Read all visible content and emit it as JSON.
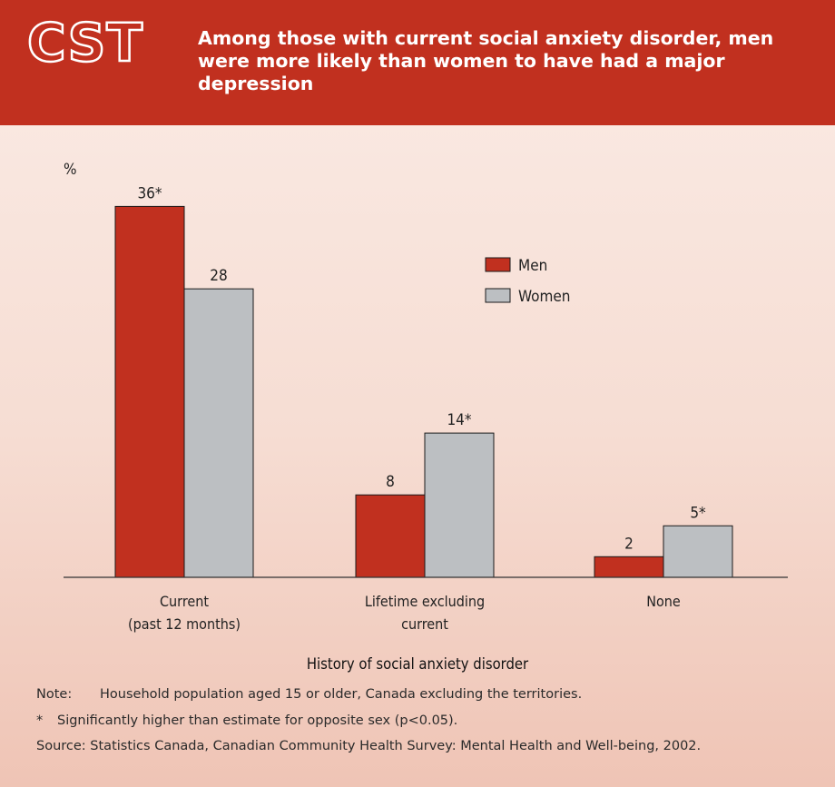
{
  "header": {
    "logo": "CST",
    "title": "Among those with current social anxiety disorder, men were more likely than women to have had a major depression"
  },
  "colors": {
    "header_bg": "#c1301f",
    "men": "#c1301f",
    "women": "#bcbfc2"
  },
  "chart_data": {
    "type": "bar",
    "ylabel": "%",
    "xlabel": "History of social anxiety disorder",
    "ylim": [
      0,
      40
    ],
    "categories": [
      [
        "Current",
        "(past 12 months)"
      ],
      [
        "Lifetime excluding",
        "current"
      ],
      [
        "None"
      ]
    ],
    "series": [
      {
        "name": "Men",
        "values": [
          36,
          8,
          2
        ],
        "labels": [
          "36*",
          "8",
          "2"
        ]
      },
      {
        "name": "Women",
        "values": [
          28,
          14,
          5
        ],
        "labels": [
          "28",
          "14*",
          "5*"
        ]
      }
    ],
    "legend_position": "top-right",
    "grid": false
  },
  "notes": {
    "note_tag": "Note:",
    "note_text": "Household population aged 15 or older, Canada excluding the territories.",
    "star_tag": "*",
    "star_text": "Significantly higher than estimate for opposite sex (p<0.05).",
    "source": "Source: Statistics Canada, Canadian Community Health Survey: Mental Health and Well-being, 2002."
  }
}
